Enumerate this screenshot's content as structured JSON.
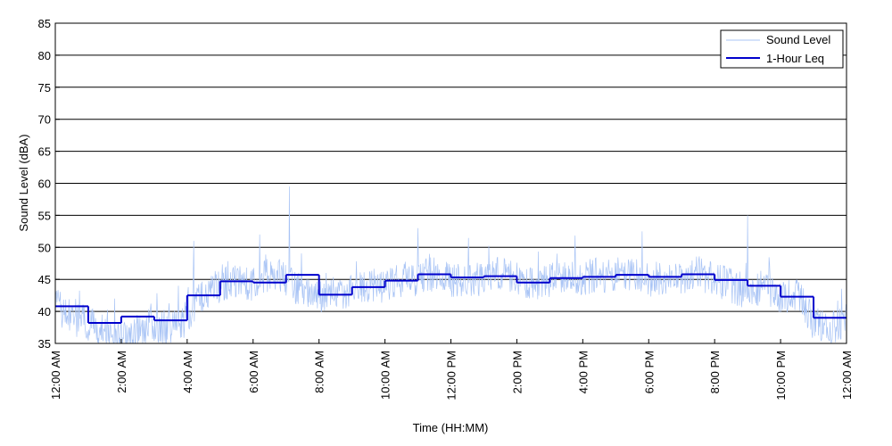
{
  "chart_data": {
    "type": "line",
    "xlabel": "Time (HH:MM)",
    "ylabel": "Sound Level (dBA)",
    "ylim": [
      35,
      85
    ],
    "xlim": [
      0,
      24
    ],
    "yticks": [
      35,
      40,
      45,
      50,
      55,
      60,
      65,
      70,
      75,
      80,
      85
    ],
    "xticks": [
      {
        "hour": 0,
        "label": "12:00 AM"
      },
      {
        "hour": 2,
        "label": "2:00 AM"
      },
      {
        "hour": 4,
        "label": "4:00 AM"
      },
      {
        "hour": 6,
        "label": "6:00 AM"
      },
      {
        "hour": 8,
        "label": "8:00 AM"
      },
      {
        "hour": 10,
        "label": "10:00 AM"
      },
      {
        "hour": 12,
        "label": "12:00 PM"
      },
      {
        "hour": 14,
        "label": "2:00 PM"
      },
      {
        "hour": 16,
        "label": "4:00 PM"
      },
      {
        "hour": 18,
        "label": "6:00 PM"
      },
      {
        "hour": 20,
        "label": "8:00 PM"
      },
      {
        "hour": 22,
        "label": "10:00 PM"
      },
      {
        "hour": 24,
        "label": "12:00 AM"
      }
    ],
    "grid": "horizontal",
    "legend": {
      "position": "top-right",
      "entries": [
        {
          "label": "Sound Level",
          "color": "#a9c4f5"
        },
        {
          "label": "1-Hour Leq",
          "color": "#0000cc"
        }
      ]
    },
    "series": [
      {
        "name": "Sound Level",
        "style": "thin-line",
        "color": "#a9c4f5",
        "x": [
          0,
          0.5,
          1,
          1.5,
          2,
          2.5,
          3,
          3.5,
          4,
          4.5,
          5,
          5.5,
          6,
          6.5,
          7,
          7.5,
          8,
          8.5,
          9,
          9.5,
          10,
          10.5,
          11,
          11.5,
          12,
          12.5,
          13,
          13.5,
          14,
          14.5,
          15,
          15.5,
          16,
          16.5,
          17,
          17.5,
          18,
          18.5,
          19,
          19.5,
          20,
          20.5,
          21,
          21.5,
          22,
          22.5,
          23,
          23.5,
          24
        ],
        "values": [
          41,
          39,
          38,
          37,
          36,
          37,
          38,
          37,
          39,
          43,
          44,
          45,
          44,
          46,
          45,
          43,
          42,
          43,
          43,
          44,
          44,
          45,
          45,
          46,
          45,
          45,
          45,
          46,
          45,
          44,
          45,
          45,
          45,
          46,
          45,
          46,
          45,
          45,
          45,
          46,
          45,
          44,
          43,
          44,
          42,
          43,
          38,
          37,
          39
        ],
        "peaks": [
          {
            "x": 7.1,
            "y": 59.5
          },
          {
            "x": 21.0,
            "y": 55
          },
          {
            "x": 11.0,
            "y": 53
          },
          {
            "x": 6.2,
            "y": 52
          },
          {
            "x": 17.8,
            "y": 52.5
          },
          {
            "x": 4.2,
            "y": 51
          }
        ],
        "range": [
          35,
          59.5
        ]
      },
      {
        "name": "1-Hour Leq",
        "style": "step",
        "color": "#0000cc",
        "x": [
          0,
          1,
          2,
          3,
          4,
          5,
          6,
          7,
          8,
          9,
          10,
          11,
          12,
          13,
          14,
          15,
          16,
          17,
          18,
          19,
          20,
          21,
          22,
          23
        ],
        "values": [
          40.8,
          38.2,
          39.2,
          38.6,
          42.5,
          44.7,
          44.5,
          45.7,
          42.6,
          43.8,
          44.8,
          45.8,
          45.3,
          45.5,
          44.5,
          45.2,
          45.4,
          45.7,
          45.4,
          45.8,
          44.9,
          44.0,
          42.3,
          39.0
        ]
      }
    ]
  }
}
